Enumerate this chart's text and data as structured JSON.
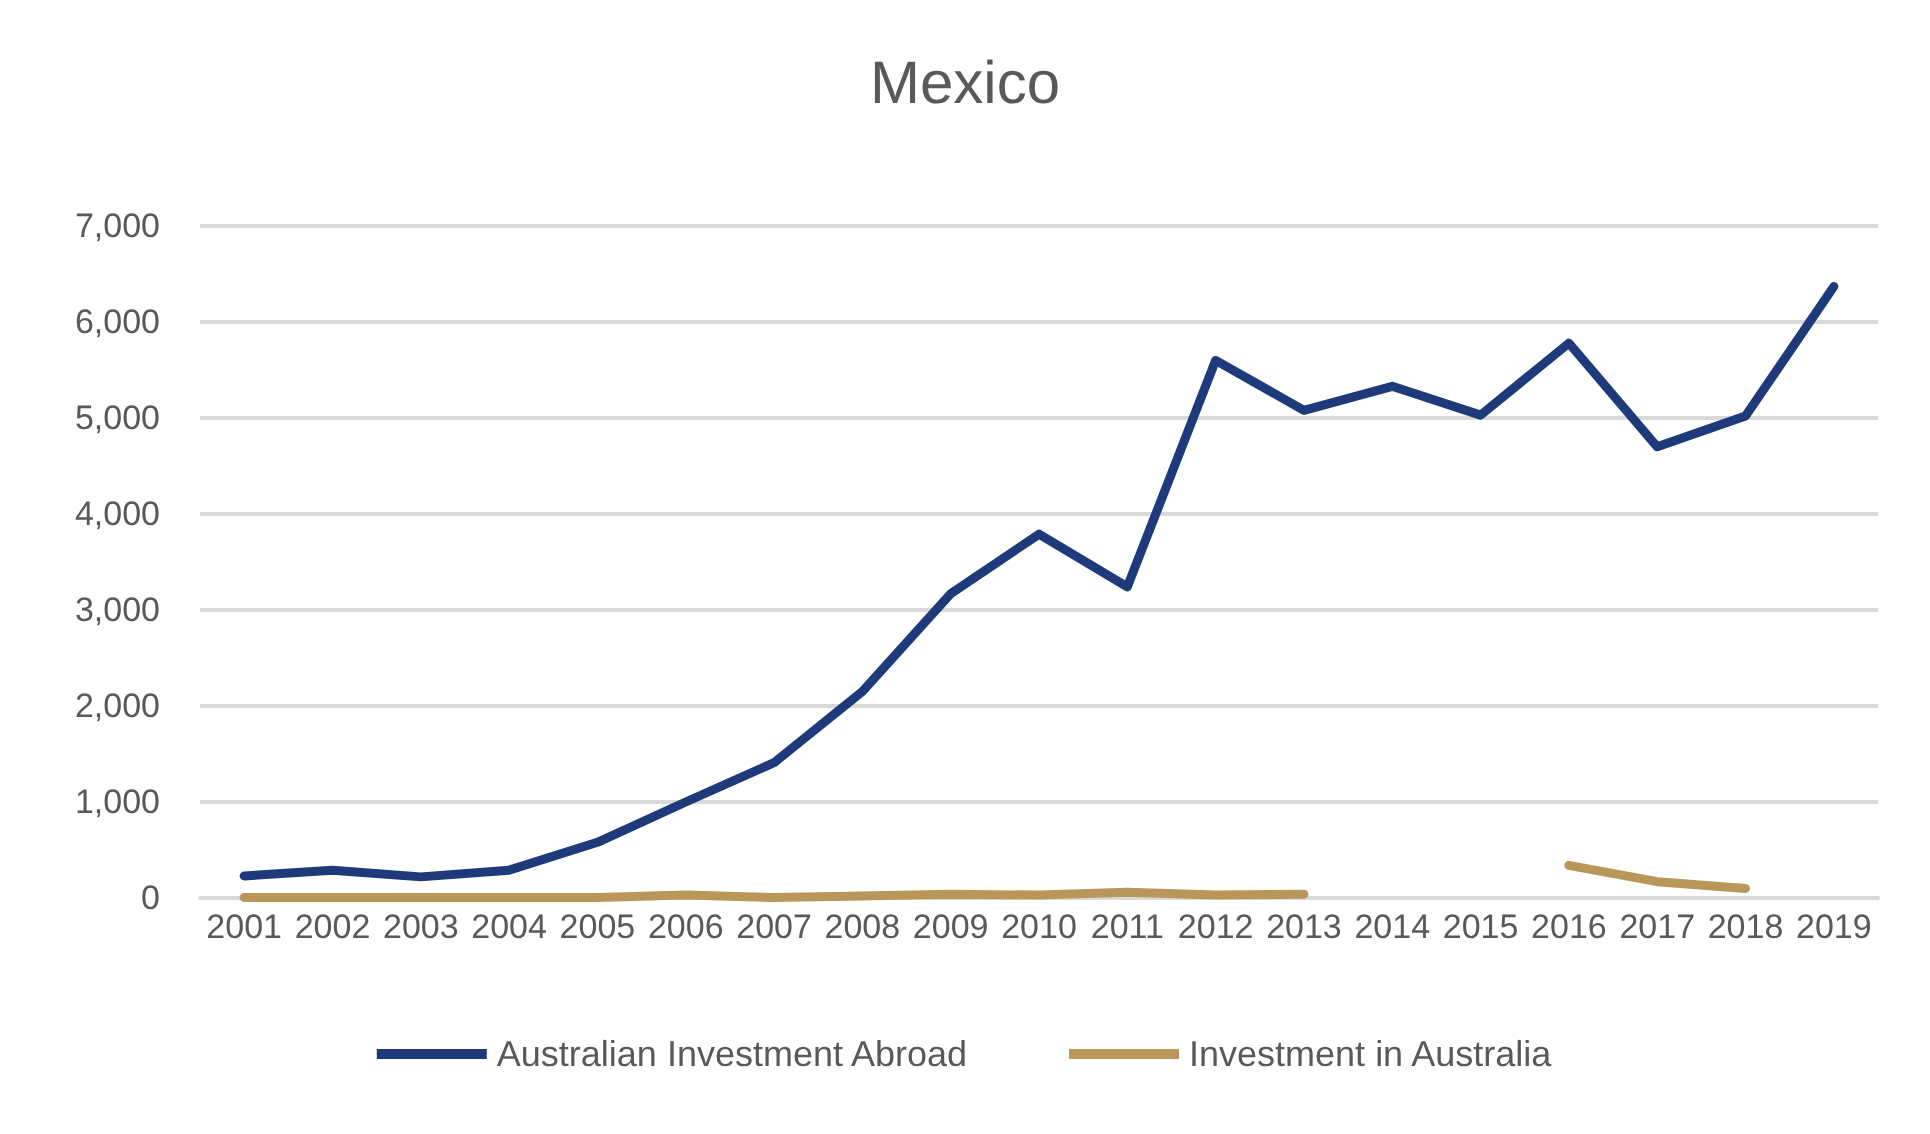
{
  "chart_data": {
    "type": "line",
    "title": "Mexico",
    "categories": [
      "2001",
      "2002",
      "2003",
      "2004",
      "2005",
      "2006",
      "2007",
      "2008",
      "2009",
      "2010",
      "2011",
      "2012",
      "2013",
      "2014",
      "2015",
      "2016",
      "2017",
      "2018",
      "2019"
    ],
    "series": [
      {
        "name": "Australian Investment Abroad",
        "color": "#1f3a7a",
        "values": [
          230,
          290,
          220,
          290,
          580,
          1000,
          1410,
          2150,
          3170,
          3790,
          3240,
          5600,
          5080,
          5330,
          5030,
          5780,
          4700,
          5020,
          6370
        ]
      },
      {
        "name": "Investment in Australia",
        "color": "#b9975b",
        "values": [
          5,
          5,
          5,
          5,
          5,
          30,
          5,
          20,
          40,
          30,
          60,
          30,
          40,
          null,
          null,
          340,
          170,
          100,
          null
        ]
      }
    ],
    "ylim": [
      0,
      7000
    ],
    "yticks": [
      {
        "value": 0,
        "label": "0"
      },
      {
        "value": 1000,
        "label": "1,000"
      },
      {
        "value": 2000,
        "label": "2,000"
      },
      {
        "value": 3000,
        "label": "3,000"
      },
      {
        "value": 4000,
        "label": "4,000"
      },
      {
        "value": 5000,
        "label": "5,000"
      },
      {
        "value": 6000,
        "label": "6,000"
      },
      {
        "value": 7000,
        "label": "7,000"
      }
    ],
    "grid": "y",
    "legend": "bottom",
    "marker": "none",
    "line_style": "solid"
  }
}
